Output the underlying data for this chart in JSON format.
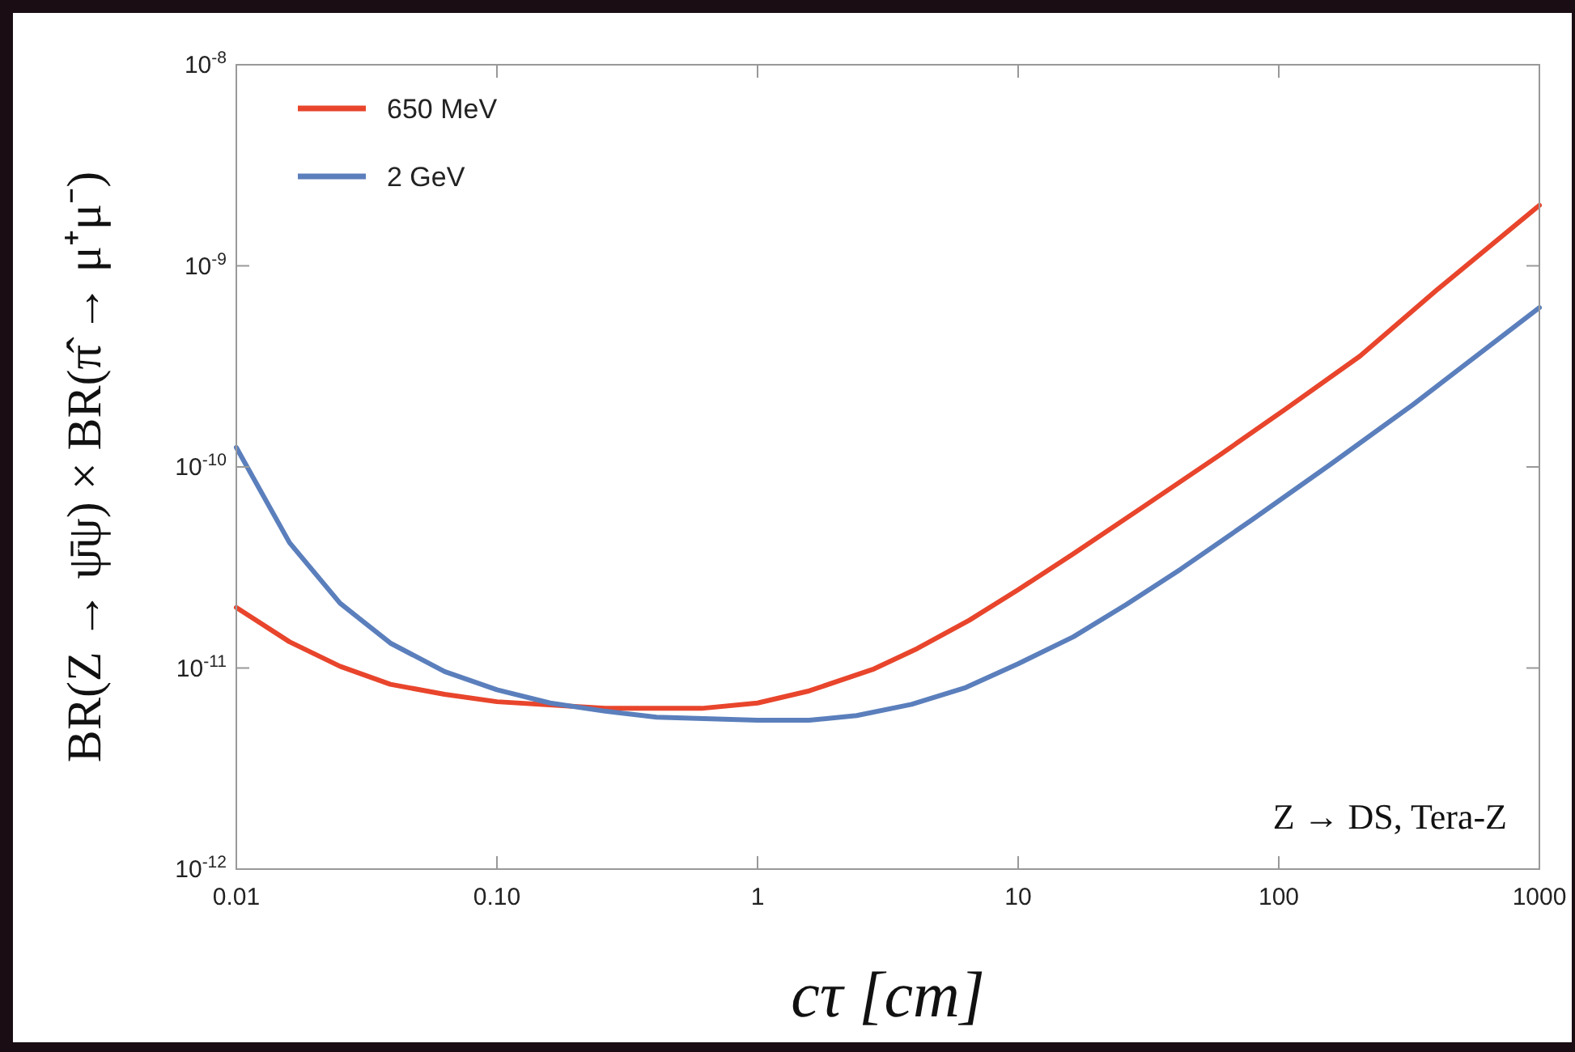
{
  "chart_data": {
    "type": "line",
    "xlabel": "cτ  [cm]",
    "ylabel": "BR(Z → ψ̄ψ) × BR(π̂ → μ⁺μ⁻)",
    "log": "xy",
    "xlim": [
      0.01,
      1000
    ],
    "ylim": [
      1e-12,
      1e-08
    ],
    "xticks": [
      {
        "value": 0.01,
        "label": "0.01"
      },
      {
        "value": 0.1,
        "label": "0.10"
      },
      1,
      10,
      100,
      1000
    ],
    "yticks": [
      {
        "value": 1e-12,
        "label": "10$^{-12}$"
      },
      {
        "value": 1e-11,
        "label": "10$^{-11}$"
      },
      {
        "value": 1e-10,
        "label": "10$^{-10}$"
      },
      {
        "value": 1e-09,
        "label": "10$^{-9}$"
      },
      {
        "value": 1e-08,
        "label": "10$^{-8}$"
      }
    ],
    "grid": false,
    "legend": "top left",
    "annotations": [
      "Z → DS, Tera-Z"
    ],
    "series": [
      {
        "name": "650 MeV",
        "color": "#e8452c",
        "x": [
          0.01,
          0.016,
          0.025,
          0.039,
          0.063,
          0.1,
          0.26,
          0.61,
          1,
          1.58,
          2.8,
          4.1,
          6.5,
          10,
          16.3,
          30,
          59,
          105,
          205,
          400,
          1000
        ],
        "values": [
          2e-11,
          1.35e-11,
          1.02e-11,
          8.3e-12,
          7.4e-12,
          6.8e-12,
          6.3e-12,
          6.3e-12,
          6.7e-12,
          7.7e-12,
          9.9e-12,
          1.25e-11,
          1.73e-11,
          2.45e-11,
          3.7e-11,
          6.3e-11,
          1.14e-10,
          1.92e-10,
          3.56e-10,
          7.5e-10,
          2e-09
        ]
      },
      {
        "name": "2 GeV",
        "color": "#5b7fbc",
        "x": [
          0.01,
          0.016,
          0.025,
          0.039,
          0.063,
          0.1,
          0.16,
          0.26,
          0.41,
          1,
          1.58,
          2.4,
          3.9,
          6.3,
          10,
          16.3,
          26,
          42,
          78,
          158,
          327,
          1000
        ],
        "values": [
          1.25e-10,
          4.2e-11,
          2.1e-11,
          1.33e-11,
          9.6e-12,
          7.8e-12,
          6.7e-12,
          6.1e-12,
          5.7e-12,
          5.5e-12,
          5.5e-12,
          5.8e-12,
          6.6e-12,
          8e-12,
          1.05e-11,
          1.43e-11,
          2.07e-11,
          3.1e-11,
          5.4e-11,
          1.03e-10,
          2.04e-10,
          6.2e-10
        ]
      }
    ]
  }
}
